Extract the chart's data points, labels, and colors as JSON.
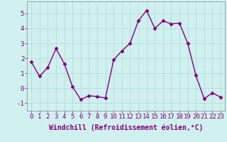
{
  "x": [
    0,
    1,
    2,
    3,
    4,
    5,
    6,
    7,
    8,
    9,
    10,
    11,
    12,
    13,
    14,
    15,
    16,
    17,
    18,
    19,
    20,
    21,
    22,
    23
  ],
  "y": [
    1.75,
    0.8,
    1.4,
    2.65,
    1.65,
    0.1,
    -0.75,
    -0.5,
    -0.55,
    -0.65,
    1.9,
    2.5,
    3.0,
    4.5,
    5.2,
    4.0,
    4.5,
    4.3,
    4.35,
    3.0,
    0.85,
    -0.7,
    -0.3,
    -0.6
  ],
  "line_color": "#800080",
  "marker": "D",
  "marker_size": 2.5,
  "line_width": 1.0,
  "bg_color": "#cff0ee",
  "grid_color": "#b0ddd8",
  "xlabel": "Windchill (Refroidissement éolien,°C)",
  "xlabel_fontsize": 7,
  "tick_fontsize": 6.5,
  "ylim": [
    -1.5,
    5.8
  ],
  "xlim": [
    -0.5,
    23.5
  ],
  "yticks": [
    -1,
    0,
    1,
    2,
    3,
    4,
    5
  ],
  "xticks": [
    0,
    1,
    2,
    3,
    4,
    5,
    6,
    7,
    8,
    9,
    10,
    11,
    12,
    13,
    14,
    15,
    16,
    17,
    18,
    19,
    20,
    21,
    22,
    23
  ]
}
